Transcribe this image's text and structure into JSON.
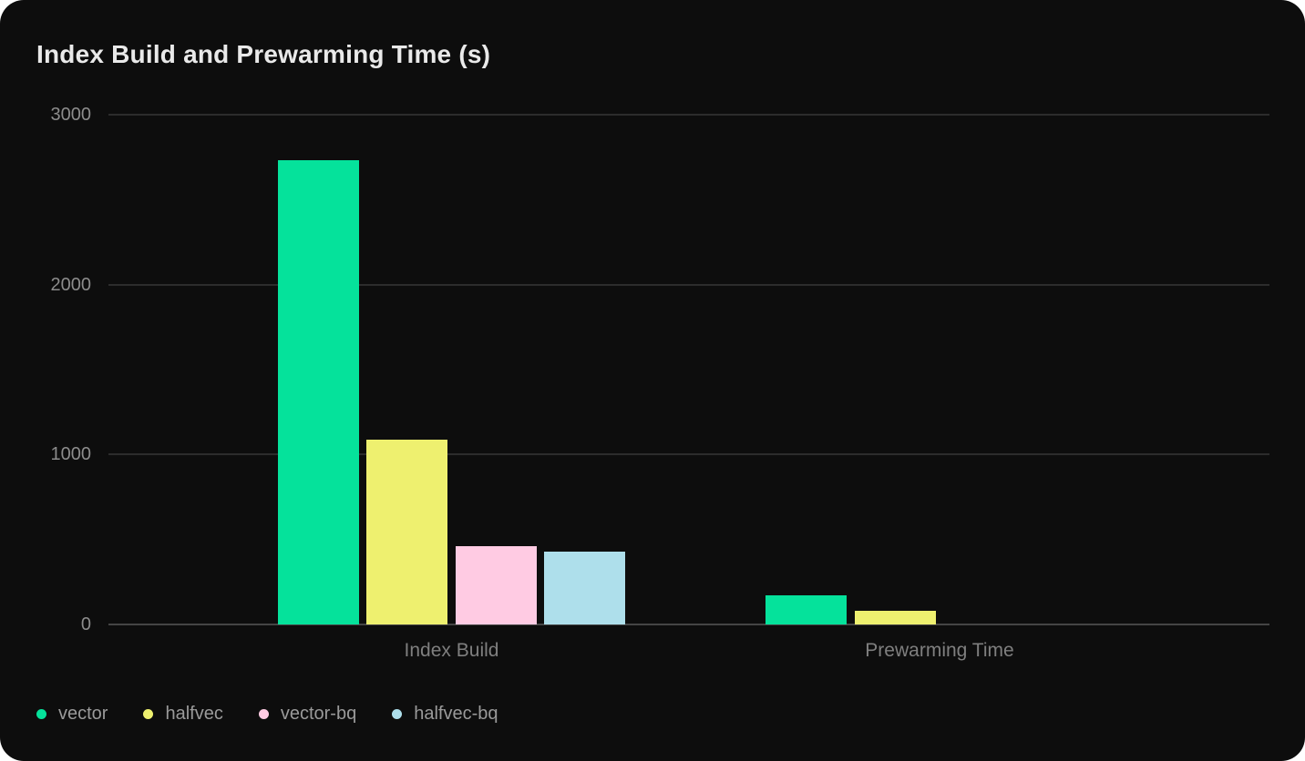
{
  "page": {
    "background": "#ffffff",
    "card_background": "#0d0d0d"
  },
  "chart_data": {
    "type": "bar",
    "title": "Index Build and Prewarming Time (s)",
    "categories": [
      "Index Build",
      "Prewarming Time"
    ],
    "series": [
      {
        "name": "vector",
        "color": "#05e29b",
        "values": [
          2730,
          170
        ]
      },
      {
        "name": "halfvec",
        "color": "#eef06f",
        "values": [
          1085,
          80
        ]
      },
      {
        "name": "vector-bq",
        "color": "#ffcbe3",
        "values": [
          460,
          0
        ]
      },
      {
        "name": "halfvec-bq",
        "color": "#aedfeb",
        "values": [
          430,
          0
        ]
      }
    ],
    "xlabel": "",
    "ylabel": "",
    "ylim": [
      0,
      3000
    ],
    "yticks": [
      0,
      1000,
      2000,
      3000
    ],
    "grid": "horizontal",
    "legend_position": "bottom-left",
    "colors": {
      "title_text": "#e9e9e9",
      "tick_text": "#8c8c8c",
      "category_text": "#7f7f7f",
      "legend_text": "#9a9a9a",
      "gridline": "#2c2c2c",
      "zero_line": "#454545"
    }
  }
}
